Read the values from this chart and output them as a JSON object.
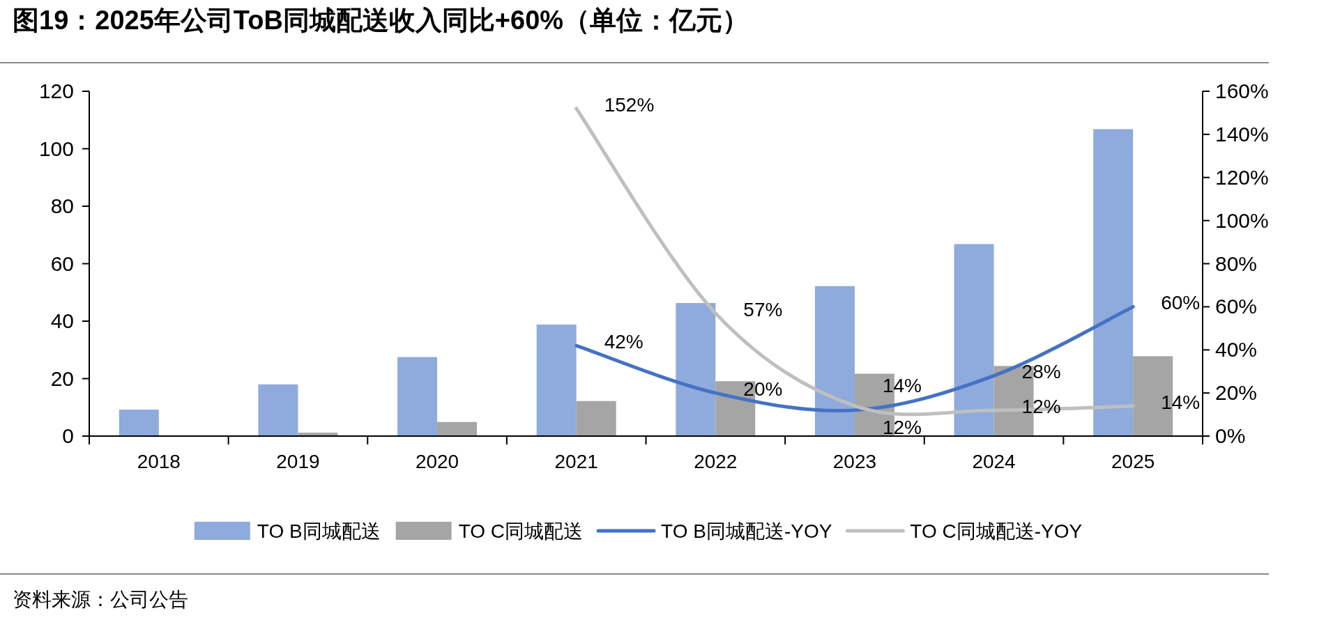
{
  "chart_data": {
    "type": "bar",
    "title": "图19：2025年公司ToB同城配送收入同比+60%（单位：亿元）",
    "categories": [
      "2018",
      "2019",
      "2020",
      "2021",
      "2022",
      "2023",
      "2024",
      "2025"
    ],
    "series": [
      {
        "name": "TO B同城配送",
        "color": "#8faadc",
        "values": [
          9.2,
          18.0,
          27.5,
          38.8,
          46.3,
          52.2,
          66.8,
          106.8
        ]
      },
      {
        "name": "TO C同城配送",
        "color": "#a5a5a5",
        "values": [
          null,
          1.2,
          4.9,
          12.2,
          19.1,
          21.7,
          24.4,
          27.8
        ]
      },
      {
        "name": "TO B同城配送-YOY",
        "type": "line",
        "axis": "y2",
        "color": "#4472c4",
        "values": [
          null,
          null,
          null,
          42,
          20,
          12,
          28,
          60
        ],
        "value_labels": [
          null,
          null,
          null,
          "42%",
          "20%",
          "12%",
          "28%",
          "60%"
        ]
      },
      {
        "name": "TO C同城配送-YOY",
        "type": "line",
        "axis": "y2",
        "color": "#bfbfbf",
        "values": [
          null,
          null,
          null,
          152,
          57,
          14,
          12,
          14
        ],
        "value_labels": [
          null,
          null,
          null,
          "152%",
          "57%",
          "14%",
          "12%",
          "14%"
        ]
      }
    ],
    "ylim": [
      0,
      120
    ],
    "yticks": [
      0,
      20,
      40,
      60,
      80,
      100,
      120
    ],
    "y2lim": [
      0,
      160
    ],
    "y2ticks": [
      {
        "value": 0,
        "label": "0%"
      },
      {
        "value": 20,
        "label": "20%"
      },
      {
        "value": 40,
        "label": "40%"
      },
      {
        "value": 60,
        "label": "60%"
      },
      {
        "value": 80,
        "label": "80%"
      },
      {
        "value": 100,
        "label": "100%"
      },
      {
        "value": 120,
        "label": "120%"
      },
      {
        "value": 140,
        "label": "140%"
      },
      {
        "value": 160,
        "label": "160%"
      }
    ],
    "legend": "bottom",
    "annotations": [
      "资料来源：公司公告"
    ]
  }
}
